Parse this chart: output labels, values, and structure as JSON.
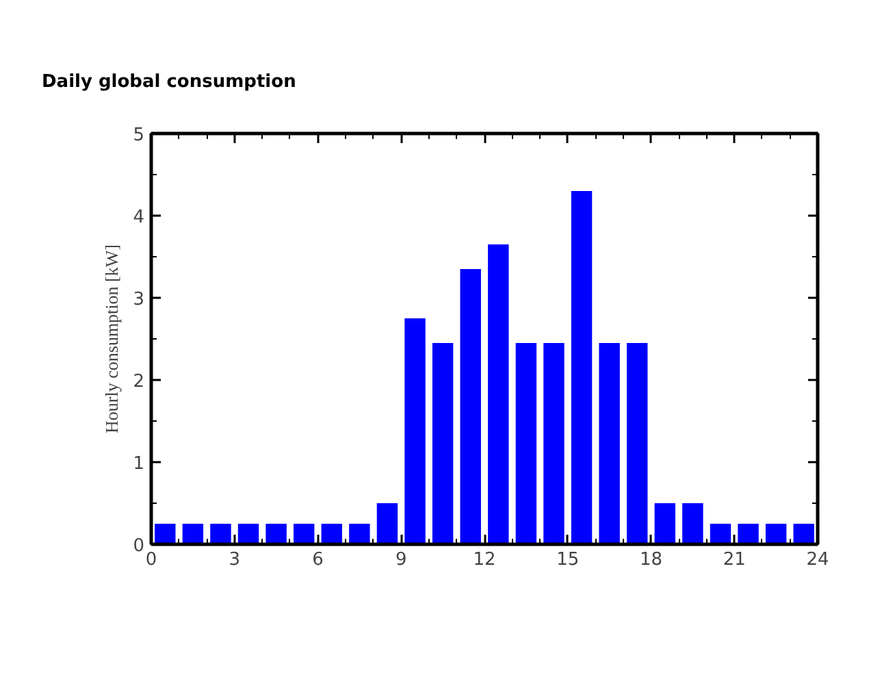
{
  "chart_data": {
    "type": "bar",
    "title": "Daily global consumption",
    "ylabel": "Hourly consumption [kW]",
    "x": [
      0.5,
      1.5,
      2.5,
      3.5,
      4.5,
      5.5,
      6.5,
      7.5,
      8.5,
      9.5,
      10.5,
      11.5,
      12.5,
      13.5,
      14.5,
      15.5,
      16.5,
      17.5,
      18.5,
      19.5,
      20.5,
      21.5,
      22.5,
      23.5
    ],
    "values": [
      0.25,
      0.25,
      0.25,
      0.25,
      0.25,
      0.25,
      0.25,
      0.25,
      0.5,
      2.75,
      2.45,
      3.35,
      3.65,
      2.45,
      2.45,
      4.3,
      2.45,
      2.45,
      0.5,
      0.5,
      0.25,
      0.25,
      0.25,
      0.25
    ],
    "color": "#0000ff",
    "xlim": [
      0,
      24
    ],
    "xticks": [
      0,
      3,
      6,
      9,
      12,
      15,
      18,
      21,
      24
    ],
    "ylim": [
      0,
      5
    ],
    "yticks": [
      0,
      1,
      2,
      3,
      4,
      5
    ],
    "grid": false
  }
}
